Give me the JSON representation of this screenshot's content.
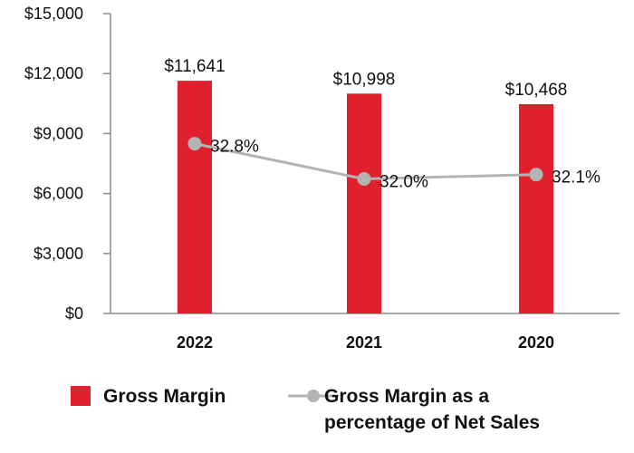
{
  "chart_data": {
    "type": "bar",
    "categories": [
      "2022",
      "2021",
      "2020"
    ],
    "series": [
      {
        "name": "Gross Margin",
        "kind": "bar",
        "values": [
          11641,
          10998,
          10468
        ],
        "labels": [
          "$11,641",
          "$10,998",
          "$10,468"
        ],
        "color": "#e0202f"
      },
      {
        "name": "Gross Margin as a percentage of Net Sales",
        "kind": "line",
        "axis": "secondary",
        "values": [
          32.8,
          32.0,
          32.1
        ],
        "labels": [
          "32.8%",
          "32.0%",
          "32.1%"
        ],
        "color": "#b3b3b3"
      }
    ],
    "ylim": [
      0,
      15000
    ],
    "yticks": [
      0,
      3000,
      6000,
      9000,
      12000,
      15000
    ],
    "ytick_labels": [
      "$0",
      "$3,000",
      "$6,000",
      "$9,000",
      "$12,000",
      "$15,000"
    ],
    "y2lim": [
      28.95,
      35.75
    ],
    "grid": false,
    "legend_position": "bottom"
  },
  "legend": {
    "bar_label": "Gross Margin",
    "line_label_1": "Gross Margin as a",
    "line_label_2": "percentage of Net Sales"
  }
}
